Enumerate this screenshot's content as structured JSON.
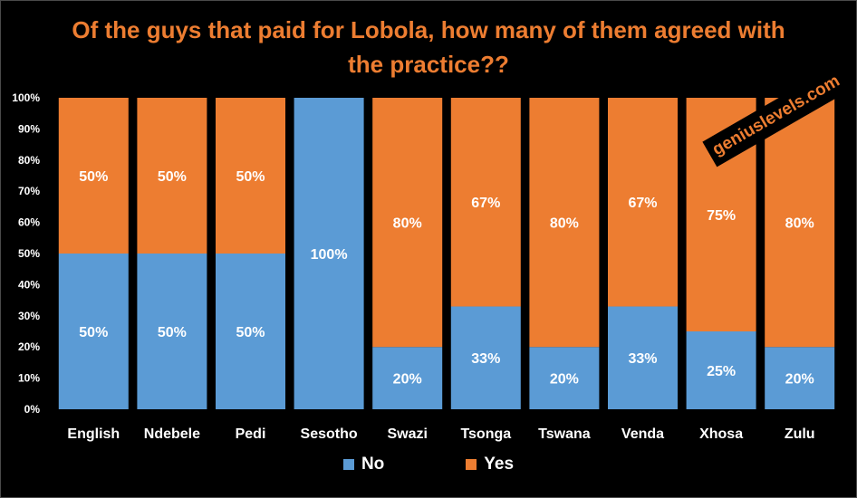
{
  "chart_data": {
    "type": "bar",
    "stacked": true,
    "title": "Of the guys that paid for Lobola, how many of them agreed with the practice??",
    "categories": [
      "English",
      "Ndebele",
      "Pedi",
      "Sesotho",
      "Swazi",
      "Tsonga",
      "Tswana",
      "Venda",
      "Xhosa",
      "Zulu"
    ],
    "series": [
      {
        "name": "No",
        "color": "#5b9bd5",
        "values": [
          50,
          50,
          50,
          100,
          20,
          33,
          20,
          33,
          25,
          20
        ]
      },
      {
        "name": "Yes",
        "color": "#ed7d31",
        "values": [
          50,
          50,
          50,
          0,
          80,
          67,
          80,
          67,
          75,
          80
        ]
      }
    ],
    "ylim": [
      0,
      100
    ],
    "yticks": [
      "0%",
      "10%",
      "20%",
      "30%",
      "40%",
      "50%",
      "60%",
      "70%",
      "80%",
      "90%",
      "100%"
    ],
    "value_suffix": "%",
    "legend": "bottom",
    "grid": false
  },
  "watermark": "geniuslevels.com",
  "colors": {
    "background": "#000000",
    "title": "#ed7d31",
    "no": "#5b9bd5",
    "yes": "#ed7d31"
  }
}
